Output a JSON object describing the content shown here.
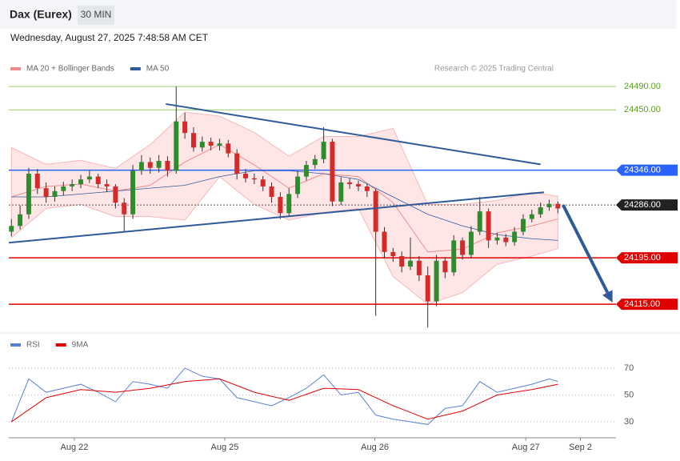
{
  "header": {
    "title": "Dax (Eurex)",
    "interval": "30 MIN",
    "timestamp": "Wednesday, August 27, 2025 7:48:58 AM CET"
  },
  "chart_data": {
    "type": "candlestick",
    "legend": [
      {
        "name": "MA 20 + Bollinger Bands",
        "color": "#f08a8a"
      },
      {
        "name": "MA 50",
        "color": "#2f5a9a"
      }
    ],
    "credit": "Research © 2025 Trading Central",
    "xlim": [
      -0.3,
      69.7
    ],
    "xticks": [
      {
        "value": 7.26,
        "label": "Aug 22"
      },
      {
        "value": 24.6,
        "label": "Aug 25"
      },
      {
        "value": 41.9,
        "label": "Aug 26"
      },
      {
        "value": 59.3,
        "label": "Aug 27"
      },
      {
        "value": 65.6,
        "label": "Sep 2"
      }
    ],
    "ylim": [
      24067,
      24584
    ],
    "yticks": [
      {
        "value": 24490,
        "label": "24490.00",
        "color": "#5a9e1e",
        "line": "#9ccc65",
        "badge": false
      },
      {
        "value": 24450,
        "label": "24450.00",
        "color": "#5a9e1e",
        "line": "#9ccc65",
        "badge": false
      },
      {
        "value": 24346,
        "label": "24346.00",
        "color": "#2962ff",
        "line": "#2962ff",
        "badge": true
      },
      {
        "value": 24286,
        "label": "24286.00",
        "color": "#222222",
        "line": "#555555",
        "badge": true,
        "dotted": true
      },
      {
        "value": 24195,
        "label": "24195.00",
        "color": "#e00000",
        "line": "#e00000",
        "badge": true
      },
      {
        "value": 24115,
        "label": "24115.00",
        "color": "#e00000",
        "line": "#e00000",
        "badge": true
      }
    ],
    "up_color": "#2e8b2e",
    "down_color": "#d42a2a",
    "candles": [
      [
        24240,
        24262,
        24232,
        24250
      ],
      [
        24250,
        24285,
        24244,
        24270
      ],
      [
        24270,
        24350,
        24262,
        24340
      ],
      [
        24340,
        24348,
        24305,
        24315
      ],
      [
        24315,
        24325,
        24290,
        24300
      ],
      [
        24300,
        24318,
        24292,
        24310
      ],
      [
        24310,
        24326,
        24302,
        24318
      ],
      [
        24318,
        24330,
        24310,
        24322
      ],
      [
        24322,
        24338,
        24315,
        24330
      ],
      [
        24330,
        24345,
        24324,
        24335
      ],
      [
        24335,
        24340,
        24315,
        24322
      ],
      [
        24322,
        24330,
        24308,
        24318
      ],
      [
        24318,
        24322,
        24280,
        24290
      ],
      [
        24290,
        24298,
        24240,
        24270
      ],
      [
        24270,
        24355,
        24262,
        24345
      ],
      [
        24345,
        24372,
        24338,
        24360
      ],
      [
        24360,
        24368,
        24340,
        24350
      ],
      [
        24350,
        24372,
        24342,
        24362
      ],
      [
        24362,
        24370,
        24335,
        24345
      ],
      [
        24345,
        24490,
        24340,
        24430
      ],
      [
        24430,
        24445,
        24400,
        24410
      ],
      [
        24410,
        24420,
        24378,
        24385
      ],
      [
        24385,
        24404,
        24378,
        24395
      ],
      [
        24395,
        24402,
        24380,
        24388
      ],
      [
        24388,
        24400,
        24380,
        24392
      ],
      [
        24392,
        24398,
        24368,
        24375
      ],
      [
        24375,
        24382,
        24330,
        24340
      ],
      [
        24340,
        24348,
        24325,
        24332
      ],
      [
        24332,
        24340,
        24322,
        24330
      ],
      [
        24330,
        24336,
        24310,
        24318
      ],
      [
        24318,
        24325,
        24290,
        24300
      ],
      [
        24300,
        24308,
        24262,
        24272
      ],
      [
        24272,
        24315,
        24266,
        24305
      ],
      [
        24305,
        24345,
        24298,
        24335
      ],
      [
        24335,
        24362,
        24328,
        24355
      ],
      [
        24355,
        24372,
        24348,
        24365
      ],
      [
        24365,
        24420,
        24358,
        24395
      ],
      [
        24395,
        24400,
        24284,
        24292
      ],
      [
        24292,
        24334,
        24286,
        24325
      ],
      [
        24325,
        24332,
        24314,
        24322
      ],
      [
        24322,
        24328,
        24310,
        24318
      ],
      [
        24318,
        24322,
        24300,
        24310
      ],
      [
        24310,
        24314,
        24095,
        24240
      ],
      [
        24240,
        24248,
        24195,
        24205
      ],
      [
        24205,
        24212,
        24188,
        24198
      ],
      [
        24198,
        24206,
        24170,
        24180
      ],
      [
        24180,
        24230,
        24174,
        24190
      ],
      [
        24190,
        24198,
        24155,
        24165
      ],
      [
        24165,
        24180,
        24075,
        24120
      ],
      [
        24120,
        24200,
        24112,
        24190
      ],
      [
        24190,
        24196,
        24160,
        24170
      ],
      [
        24170,
        24234,
        24164,
        24225
      ],
      [
        24225,
        24230,
        24192,
        24200
      ],
      [
        24200,
        24250,
        24194,
        24240
      ],
      [
        24240,
        24300,
        24234,
        24275
      ],
      [
        24275,
        24280,
        24212,
        24225
      ],
      [
        24225,
        24238,
        24218,
        24230
      ],
      [
        24230,
        24236,
        24215,
        24222
      ],
      [
        24222,
        24248,
        24216,
        24240
      ],
      [
        24240,
        24270,
        24234,
        24262
      ],
      [
        24262,
        24278,
        24256,
        24270
      ],
      [
        24270,
        24290,
        24264,
        24282
      ],
      [
        24282,
        24295,
        24276,
        24288
      ],
      [
        24288,
        24292,
        24272,
        24280
      ]
    ],
    "ind_x": [
      0,
      4,
      8,
      12,
      16,
      20,
      24,
      28,
      32,
      36,
      40,
      44,
      48,
      52,
      56,
      60,
      63
    ],
    "bb_upper": [
      24385,
      24356,
      24363,
      24349,
      24390,
      24446,
      24439,
      24411,
      24370,
      24404,
      24404,
      24418,
      24287,
      24287,
      24294,
      24308,
      24301
    ],
    "bb_lower": [
      24230,
      24280,
      24287,
      24266,
      24266,
      24260,
      24335,
      24287,
      24260,
      24273,
      24280,
      24163,
      24115,
      24135,
      24184,
      24198,
      24211
    ],
    "ma20": [
      24300,
      24318,
      24322,
      24310,
      24320,
      24360,
      24390,
      24355,
      24315,
      24340,
      24335,
      24290,
      24205,
      24210,
      24238,
      24250,
      24262
    ],
    "ma50": [
      24300,
      24300,
      24305,
      24310,
      24315,
      24320,
      24335,
      24345,
      24345,
      24340,
      24330,
      24300,
      24270,
      24250,
      24235,
      24228,
      24225
    ],
    "trendlines": [
      {
        "color": "#2f5a9a",
        "points": [
          [
            17.8,
            24460
          ],
          [
            61,
            24356
          ]
        ]
      },
      {
        "color": "#2f5a9a",
        "points": [
          [
            -0.3,
            24221
          ],
          [
            61.4,
            24308
          ]
        ]
      }
    ],
    "arrow": {
      "color": "#2f5a9a",
      "points": [
        [
          63.6,
          24286
        ],
        [
          69.3,
          24118
        ]
      ]
    },
    "rsi": {
      "legend": [
        {
          "name": "RSI",
          "color": "#5b7fd6"
        },
        {
          "name": "9MA",
          "color": "#e00000"
        }
      ],
      "ylim": [
        19.3,
        81.9
      ],
      "yticks": [
        70,
        50,
        30
      ],
      "x": [
        0,
        2,
        4,
        6,
        8,
        10,
        12,
        14,
        16,
        18,
        20,
        22,
        24,
        26,
        28,
        30,
        32,
        34,
        36,
        38,
        40,
        42,
        44,
        46,
        48,
        50,
        52,
        54,
        56,
        58,
        60,
        62,
        63
      ],
      "values": [
        30,
        62,
        52,
        55,
        58,
        52,
        45,
        60,
        58,
        55,
        70,
        64,
        62,
        48,
        45,
        42,
        48,
        55,
        65,
        50,
        52,
        35,
        32,
        30,
        28,
        40,
        42,
        60,
        52,
        55,
        58,
        62,
        60
      ],
      "ma_x": [
        0,
        4,
        8,
        12,
        16,
        20,
        24,
        28,
        32,
        36,
        40,
        44,
        48,
        52,
        56,
        60,
        63
      ],
      "ma_values": [
        30,
        48,
        54,
        52,
        55,
        60,
        62,
        52,
        46,
        55,
        54,
        42,
        32,
        38,
        50,
        54,
        58
      ]
    }
  }
}
